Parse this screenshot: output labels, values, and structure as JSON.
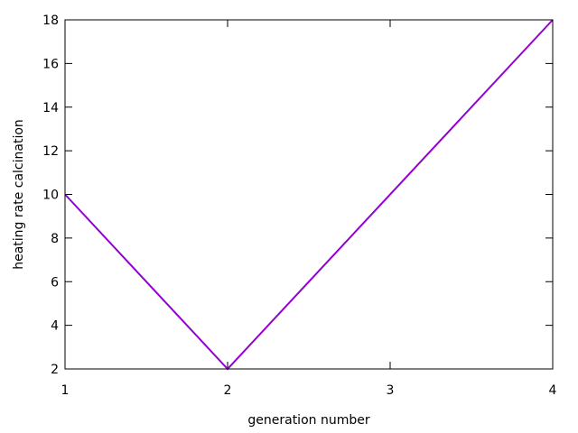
{
  "chart_data": {
    "type": "line",
    "title": "",
    "xlabel": "generation number",
    "ylabel": "heating rate calcination",
    "xlim": [
      1,
      4
    ],
    "ylim": [
      2,
      18
    ],
    "x_ticks": [
      1,
      2,
      3,
      4
    ],
    "y_ticks": [
      2,
      4,
      6,
      8,
      10,
      12,
      14,
      16,
      18
    ],
    "grid": false,
    "legend": "none",
    "series": [
      {
        "color": "#9400D3",
        "x": [
          1,
          2,
          4
        ],
        "y": [
          10,
          2,
          18
        ]
      }
    ]
  }
}
